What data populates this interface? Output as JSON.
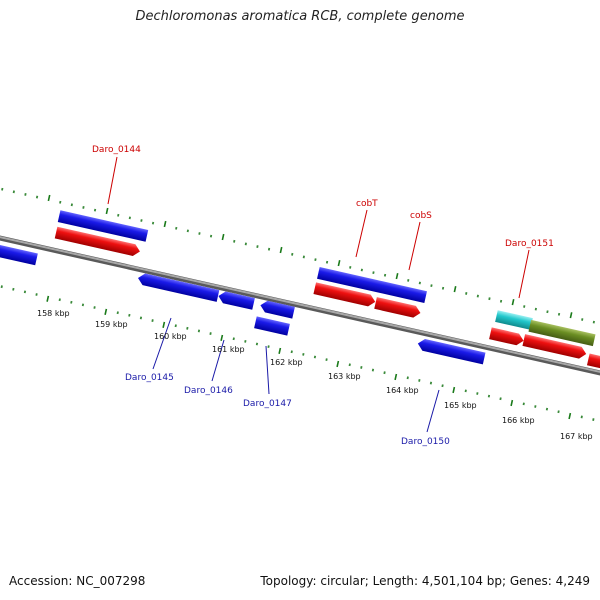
{
  "title": "Dechloromonas aromatica RCB, complete genome",
  "footer": {
    "accession": "Accession: NC_007298",
    "topology": "Topology: circular; Length: 4,501,104 bp; Genes: 4,249"
  },
  "scale_labels": [
    "158 kbp",
    "159 kbp",
    "160 kbp",
    "161 kbp",
    "162 kbp",
    "163 kbp",
    "164 kbp",
    "165 kbp",
    "166 kbp",
    "167 kbp"
  ],
  "gene_labels": [
    {
      "text": "Daro_0144",
      "strand": "forward"
    },
    {
      "text": "cobT",
      "strand": "forward"
    },
    {
      "text": "cobS",
      "strand": "forward"
    },
    {
      "text": "Daro_0151",
      "strand": "forward"
    },
    {
      "text": "Daro_0145",
      "strand": "reverse"
    },
    {
      "text": "Daro_0146",
      "strand": "reverse"
    },
    {
      "text": "Daro_0147",
      "strand": "reverse"
    },
    {
      "text": "Daro_0150",
      "strand": "reverse"
    }
  ],
  "colors": {
    "backbone": "#8a8a8a",
    "cds": "#0a0adc",
    "gene": "#e41010",
    "rna": "#22c8cc",
    "other": "#6b8e23",
    "tick_major": "#1a7a1a",
    "tick_minor": "#3a8a3a"
  }
}
